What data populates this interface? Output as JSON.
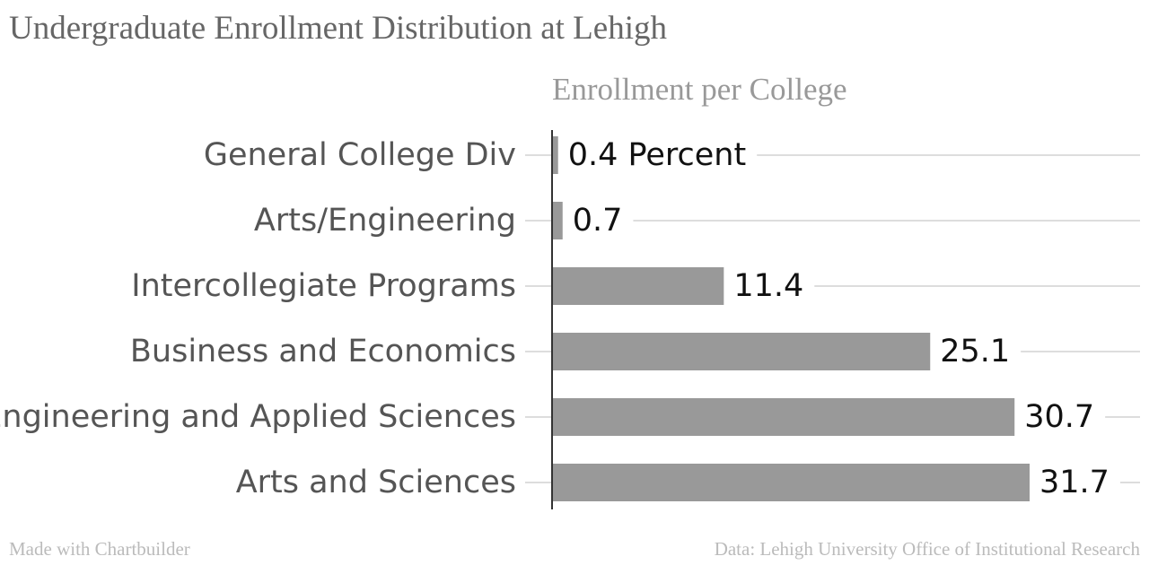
{
  "title": "Undergraduate Enrollment Distribution at Lehigh",
  "footer": {
    "credit": "Made with Chartbuilder",
    "source": "Data: Lehigh University Office of Institutional Research"
  },
  "chart_data": {
    "type": "bar",
    "orientation": "horizontal",
    "series_title": "Enrollment per College",
    "categories": [
      "General College Div",
      "Arts/Engineering",
      "Intercollegiate Programs",
      "Business and Economics",
      "Engineering and Applied Sciences",
      "Arts and Sciences"
    ],
    "values": [
      0.4,
      0.7,
      11.4,
      25.1,
      30.7,
      31.7
    ],
    "value_labels": [
      "0.4 Percent",
      "0.7",
      "11.4",
      "25.1",
      "30.7",
      "31.7"
    ],
    "unit": "Percent",
    "xlim": [
      0,
      31.7
    ],
    "grid": true,
    "bar_color": "#999999",
    "grid_color": "#dddddd",
    "axis_color": "#333333"
  }
}
